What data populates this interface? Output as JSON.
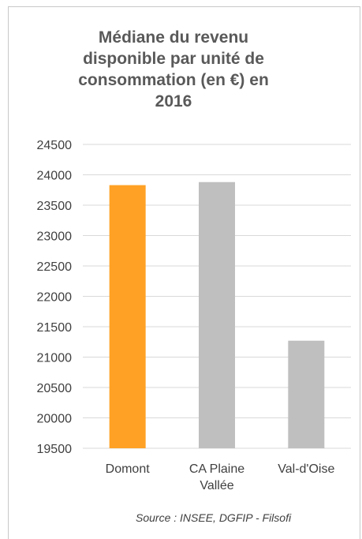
{
  "chart_data": {
    "type": "bar",
    "title_lines": [
      "Médiane du revenu",
      "disponible par unité de",
      "consommation (en €) en",
      "2016"
    ],
    "categories": [
      [
        "Domont"
      ],
      [
        "CA Plaine",
        "Vallée"
      ],
      [
        "Val-d'Oise"
      ]
    ],
    "values": [
      23830,
      23880,
      21270
    ],
    "bar_colors": [
      "#ffa125",
      "#bfbfbf",
      "#bfbfbf"
    ],
    "ylim": [
      19500,
      24500
    ],
    "yticks": [
      "19500",
      "20000",
      "20500",
      "21000",
      "21500",
      "22000",
      "22500",
      "23000",
      "23500",
      "24000",
      "24500"
    ],
    "grid": true,
    "gridline_color": "#d9d9d9"
  },
  "source": "Source : INSEE, DGFIP - Filsofi"
}
